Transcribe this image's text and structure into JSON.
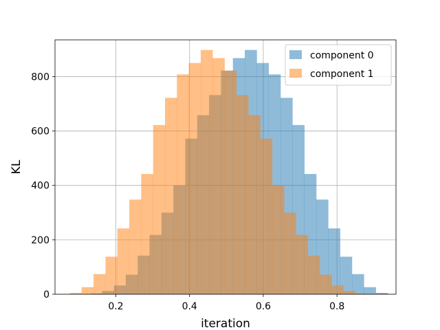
{
  "chart_data": {
    "type": "bar",
    "title": "",
    "xlabel": "iteration",
    "ylabel": "KL",
    "xlim": [
      0.035,
      0.96
    ],
    "ylim": [
      0,
      935
    ],
    "x_ticks": [
      "0.2",
      "0.4",
      "0.6",
      "0.8"
    ],
    "y_ticks": [
      "0",
      "200",
      "400",
      "600",
      "800"
    ],
    "grid": true,
    "legend_position": "top-right",
    "overlap_color": "#c59c74",
    "series": [
      {
        "name": "component 0",
        "color": "#1f77b4",
        "opacity": 0.5,
        "bin_width": 0.0323,
        "bins": [
          {
            "x0": 0.13,
            "count": 3
          },
          {
            "x0": 0.1623,
            "count": 12
          },
          {
            "x0": 0.1946,
            "count": 32
          },
          {
            "x0": 0.2269,
            "count": 72
          },
          {
            "x0": 0.2592,
            "count": 142
          },
          {
            "x0": 0.2915,
            "count": 218
          },
          {
            "x0": 0.3238,
            "count": 300
          },
          {
            "x0": 0.3561,
            "count": 400
          },
          {
            "x0": 0.3884,
            "count": 572
          },
          {
            "x0": 0.4207,
            "count": 658
          },
          {
            "x0": 0.453,
            "count": 732
          },
          {
            "x0": 0.4853,
            "count": 822
          },
          {
            "x0": 0.5176,
            "count": 868
          },
          {
            "x0": 0.5499,
            "count": 898
          },
          {
            "x0": 0.5822,
            "count": 850
          },
          {
            "x0": 0.6145,
            "count": 808
          },
          {
            "x0": 0.6468,
            "count": 722
          },
          {
            "x0": 0.6791,
            "count": 622
          },
          {
            "x0": 0.7114,
            "count": 442
          },
          {
            "x0": 0.7437,
            "count": 348
          },
          {
            "x0": 0.776,
            "count": 242
          },
          {
            "x0": 0.8083,
            "count": 138
          },
          {
            "x0": 0.8406,
            "count": 74
          },
          {
            "x0": 0.8729,
            "count": 26
          },
          {
            "x0": 0.9052,
            "count": 5
          }
        ]
      },
      {
        "name": "component 1",
        "color": "#ff7f0e",
        "opacity": 0.5,
        "bin_width": 0.0323,
        "bins": [
          {
            "x0": 0.075,
            "count": 5
          },
          {
            "x0": 0.1073,
            "count": 26
          },
          {
            "x0": 0.1396,
            "count": 74
          },
          {
            "x0": 0.1719,
            "count": 138
          },
          {
            "x0": 0.2042,
            "count": 242
          },
          {
            "x0": 0.2365,
            "count": 348
          },
          {
            "x0": 0.2688,
            "count": 442
          },
          {
            "x0": 0.3011,
            "count": 622
          },
          {
            "x0": 0.3334,
            "count": 722
          },
          {
            "x0": 0.3657,
            "count": 808
          },
          {
            "x0": 0.398,
            "count": 850
          },
          {
            "x0": 0.4303,
            "count": 898
          },
          {
            "x0": 0.4626,
            "count": 868
          },
          {
            "x0": 0.4949,
            "count": 822
          },
          {
            "x0": 0.5272,
            "count": 732
          },
          {
            "x0": 0.5595,
            "count": 658
          },
          {
            "x0": 0.5918,
            "count": 572
          },
          {
            "x0": 0.6241,
            "count": 400
          },
          {
            "x0": 0.6564,
            "count": 300
          },
          {
            "x0": 0.6887,
            "count": 218
          },
          {
            "x0": 0.721,
            "count": 142
          },
          {
            "x0": 0.7533,
            "count": 72
          },
          {
            "x0": 0.7856,
            "count": 32
          },
          {
            "x0": 0.8179,
            "count": 12
          },
          {
            "x0": 0.8502,
            "count": 3
          }
        ]
      }
    ]
  }
}
